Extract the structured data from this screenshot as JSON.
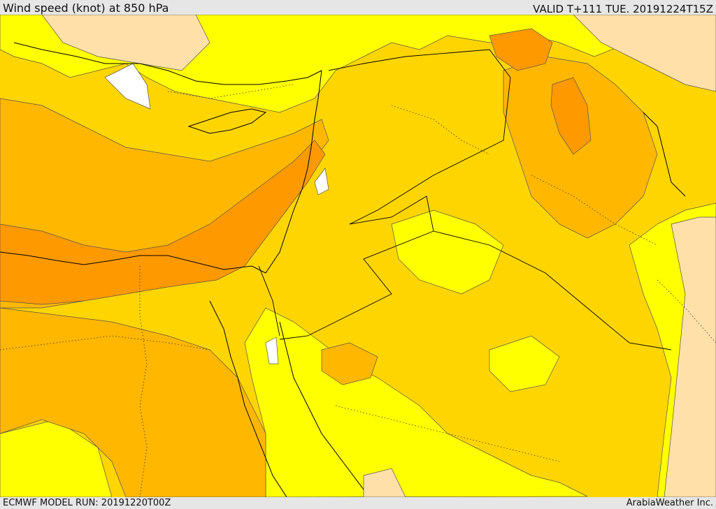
{
  "header": {
    "title": "Wind speed (knot) at 850 hPa",
    "valid": "VALID T+111 TUE. 20191224T15Z"
  },
  "footer": {
    "run": "ECMWF MODEL RUN: 20191220T00Z",
    "brand": "ArabiaWeather Inc."
  },
  "colors": {
    "calm": "#ffffff",
    "light": "#ffe0a8",
    "low": "#ffff00",
    "moderate": "#ffd500",
    "fresh": "#ffb700",
    "strong": "#ff9900",
    "contour": "#555555",
    "coastline": "#000000",
    "border": "#000000"
  }
}
